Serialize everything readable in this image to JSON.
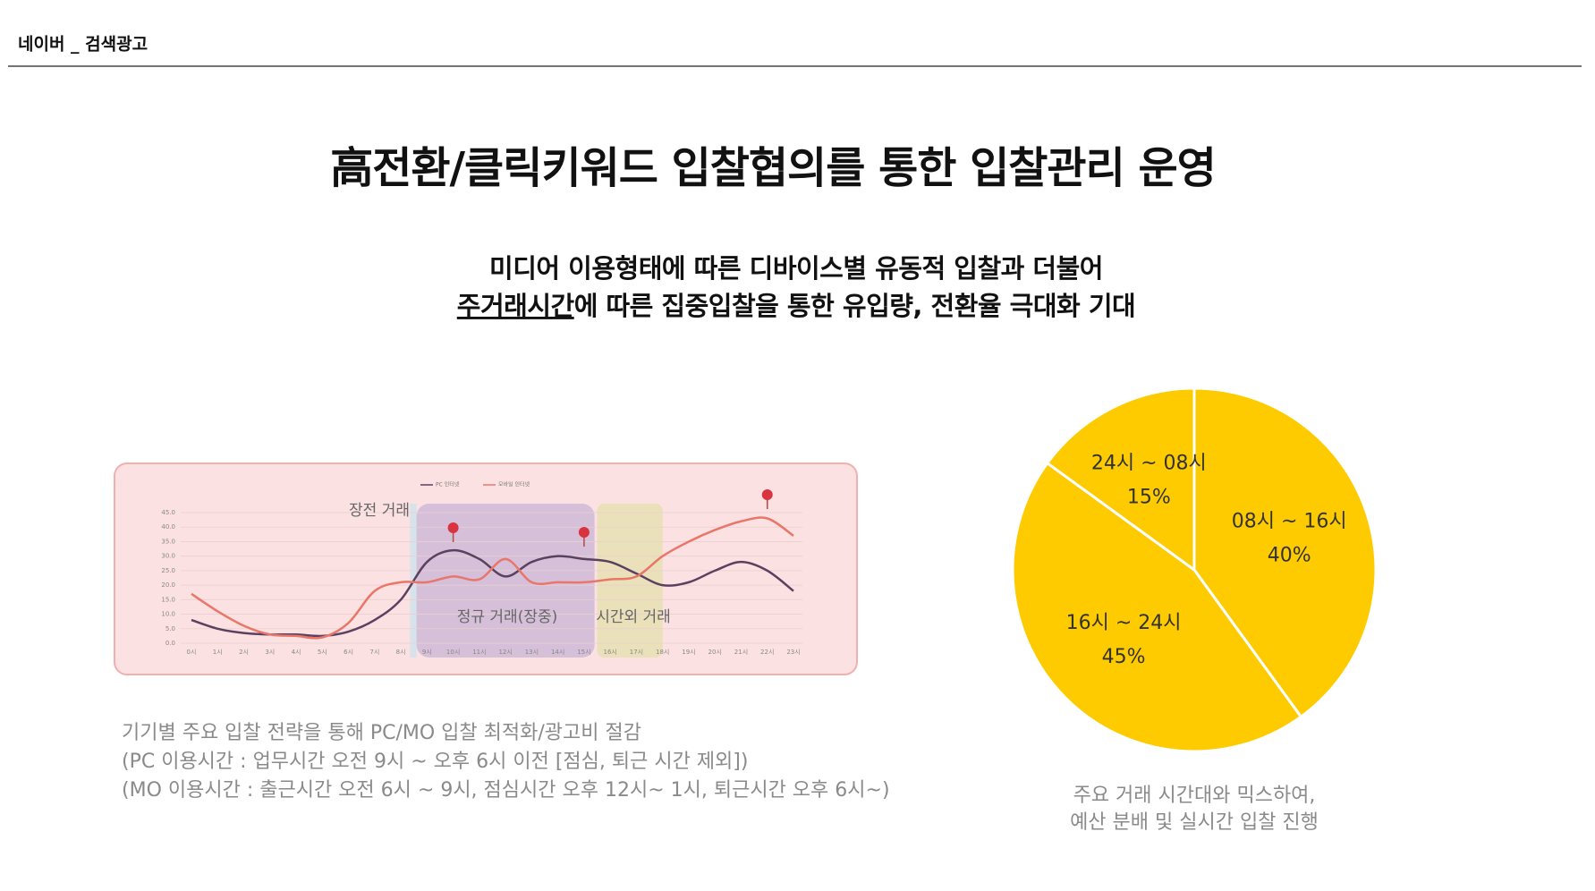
{
  "header": {
    "title": "네이버 _ 검색광고"
  },
  "title": "高전환/클릭키워드 입찰협의를 통한 입찰관리 운영",
  "subtitle": {
    "line1": "미디어 이용형태에 따른 디바이스별 유동적 입찰과 더불어",
    "line2_underlined": "주거래시간",
    "line2_rest": "에 따른 집중입찰을 통한 유입량, 전환율 극대화 기대"
  },
  "left_caption": [
    "기기별 주요 입찰 전략을 통해 PC/MO 입찰 최적화/광고비 절감",
    "(PC 이용시간 : 업무시간 오전 9시 ~ 오후 6시 이전 [점심, 퇴근 시간 제외])",
    "(MO 이용시간 : 출근시간 오전 6시 ~ 9시, 점심시간 오후 12시~ 1시, 퇴근시간 오후 6시~)"
  ],
  "right_caption": [
    "주요 거래 시간대와 믹스하여,",
    "예산 분배 및 실시간 입찰 진행"
  ],
  "chart_data": [
    {
      "type": "line",
      "categories": [
        "0시",
        "1시",
        "2시",
        "3시",
        "4시",
        "5시",
        "6시",
        "7시",
        "8시",
        "9시",
        "10시",
        "11시",
        "12시",
        "13시",
        "14시",
        "15시",
        "16시",
        "17시",
        "18시",
        "19시",
        "20시",
        "21시",
        "22시",
        "23시"
      ],
      "series": [
        {
          "name": "PC 인터넷",
          "color": "#5b4160",
          "values": [
            8,
            5,
            3.5,
            3,
            3,
            2.5,
            4,
            8,
            15,
            28,
            32,
            29,
            23,
            28,
            30,
            29,
            28,
            24,
            20,
            21,
            25,
            28,
            25,
            18
          ]
        },
        {
          "name": "모바일 인터넷",
          "color": "#e8776a",
          "values": [
            17,
            11,
            6,
            3,
            2.5,
            2,
            7,
            18,
            21,
            21,
            23,
            22,
            29,
            21,
            21,
            21,
            22,
            23,
            30,
            35,
            39,
            42,
            43,
            37
          ]
        }
      ],
      "ylim": [
        0,
        45
      ],
      "yticks": [
        {
          "value": 0,
          "label": "0.0"
        },
        {
          "value": 5,
          "label": "5.0"
        },
        {
          "value": 10,
          "label": "10.0"
        },
        {
          "value": 15,
          "label": "15.0"
        },
        {
          "value": 20,
          "label": "20.0"
        },
        {
          "value": 25,
          "label": "25.0"
        },
        {
          "value": 30,
          "label": "30.0"
        },
        {
          "value": 35,
          "label": "35.0"
        },
        {
          "value": 40,
          "label": "40.0"
        },
        {
          "value": 45,
          "label": "45.0"
        }
      ],
      "grid": true,
      "annotations": [
        "장전 거래",
        "정규 거래(장중)",
        "시간외 거래"
      ]
    },
    {
      "type": "pie",
      "categories": [
        "08시 ~ 16시",
        "16시 ~ 24시",
        "24시 ~ 08시"
      ],
      "values": [
        40,
        45,
        15
      ],
      "value_labels": [
        "40%",
        "45%",
        "15%"
      ],
      "color": "#fecb00"
    }
  ]
}
